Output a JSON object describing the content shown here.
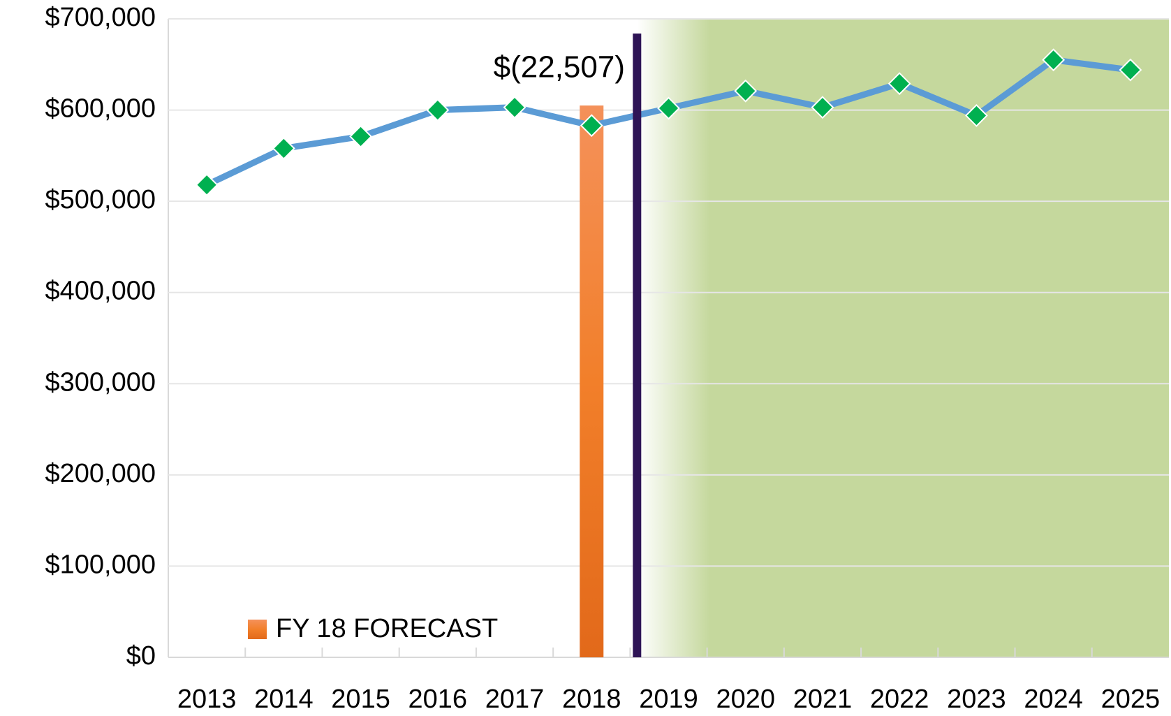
{
  "chart_data": {
    "type": "line",
    "categories": [
      "2013",
      "2014",
      "2015",
      "2016",
      "2017",
      "2018",
      "2019",
      "2020",
      "2021",
      "2022",
      "2023",
      "2024",
      "2025"
    ],
    "series": [
      {
        "type": "bar",
        "name": "FY 18 FORECAST",
        "color": "#ef7b2c",
        "values": [
          null,
          null,
          null,
          null,
          null,
          605000,
          null,
          null,
          null,
          null,
          null,
          null,
          null
        ]
      },
      {
        "type": "line",
        "color": "#5b9bd5",
        "marker_color": "#00b050",
        "values": [
          518000,
          558000,
          571000,
          600000,
          603000,
          583000,
          602000,
          621000,
          603000,
          629000,
          594000,
          655000,
          644000
        ]
      }
    ],
    "annotations": [
      {
        "text": "$(22,507)"
      }
    ],
    "ylim": [
      0,
      700000
    ],
    "yticks": [
      {
        "value": 0,
        "label": "$0"
      },
      {
        "value": 100000,
        "label": "$100,000"
      },
      {
        "value": 200000,
        "label": "$200,000"
      },
      {
        "value": 300000,
        "label": "$300,000"
      },
      {
        "value": 400000,
        "label": "$400,000"
      },
      {
        "value": 500000,
        "label": "$500,000"
      },
      {
        "value": 600000,
        "label": "$600,000"
      },
      {
        "value": 700000,
        "label": "$700,000"
      }
    ],
    "grid": true,
    "legend": "bottom-left"
  }
}
